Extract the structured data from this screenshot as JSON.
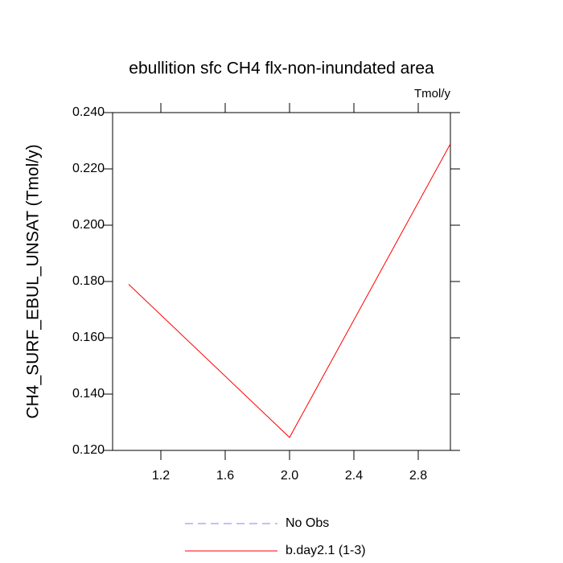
{
  "chart_data": {
    "type": "line",
    "title": "ebullition sfc CH4 flx-non-inundated area",
    "units_label": "Tmol/y",
    "y_label": "CH4_SURF_EBUL_UNSAT  (Tmol/y)",
    "x": [
      1,
      2,
      3
    ],
    "series": [
      {
        "name": "No Obs",
        "color": "#8080ff",
        "dashed": true,
        "values": [
          null,
          null,
          null
        ]
      },
      {
        "name": "b.day2.1 (1-3)",
        "color": "#ff0000",
        "dashed": false,
        "values": [
          0.179,
          0.1246,
          0.2289
        ]
      }
    ],
    "xlim": [
      0.9,
      3.0
    ],
    "xticks": [
      1.2,
      1.6,
      {
        "value": 2.0,
        "label": "2.0"
      },
      2.4,
      2.8
    ],
    "ylim": [
      0.12,
      0.24
    ],
    "yticks": [
      {
        "value": 0.12,
        "label": "0.120"
      },
      {
        "value": 0.14,
        "label": "0.140"
      },
      {
        "value": 0.16,
        "label": "0.160"
      },
      {
        "value": 0.18,
        "label": "0.180"
      },
      {
        "value": 0.2,
        "label": "0.200"
      },
      {
        "value": 0.22,
        "label": "0.220"
      },
      {
        "value": 0.24,
        "label": "0.240"
      }
    ],
    "grid": false
  }
}
